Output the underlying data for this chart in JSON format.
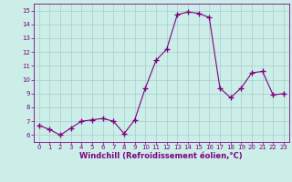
{
  "x": [
    0,
    1,
    2,
    3,
    4,
    5,
    6,
    7,
    8,
    9,
    10,
    11,
    12,
    13,
    14,
    15,
    16,
    17,
    18,
    19,
    20,
    21,
    22,
    23
  ],
  "y": [
    6.7,
    6.4,
    6.0,
    6.5,
    7.0,
    7.1,
    7.2,
    7.0,
    6.1,
    7.1,
    9.4,
    11.4,
    12.2,
    14.7,
    14.9,
    14.8,
    14.5,
    9.4,
    8.7,
    9.4,
    10.5,
    10.6,
    8.9,
    9.0
  ],
  "line_color": "#800080",
  "marker": "+",
  "marker_size": 4,
  "bg_color": "#cceee8",
  "grid_color": "#aacccc",
  "xlabel": "Windchill (Refroidissement éolien,°C)",
  "xlim": [
    -0.5,
    23.5
  ],
  "ylim": [
    5.5,
    15.5
  ],
  "yticks": [
    6,
    7,
    8,
    9,
    10,
    11,
    12,
    13,
    14,
    15
  ],
  "xticks": [
    0,
    1,
    2,
    3,
    4,
    5,
    6,
    7,
    8,
    9,
    10,
    11,
    12,
    13,
    14,
    15,
    16,
    17,
    18,
    19,
    20,
    21,
    22,
    23
  ],
  "tick_color": "#800080",
  "label_color": "#800080",
  "tick_fontsize": 5.0,
  "xlabel_fontsize": 6.0
}
